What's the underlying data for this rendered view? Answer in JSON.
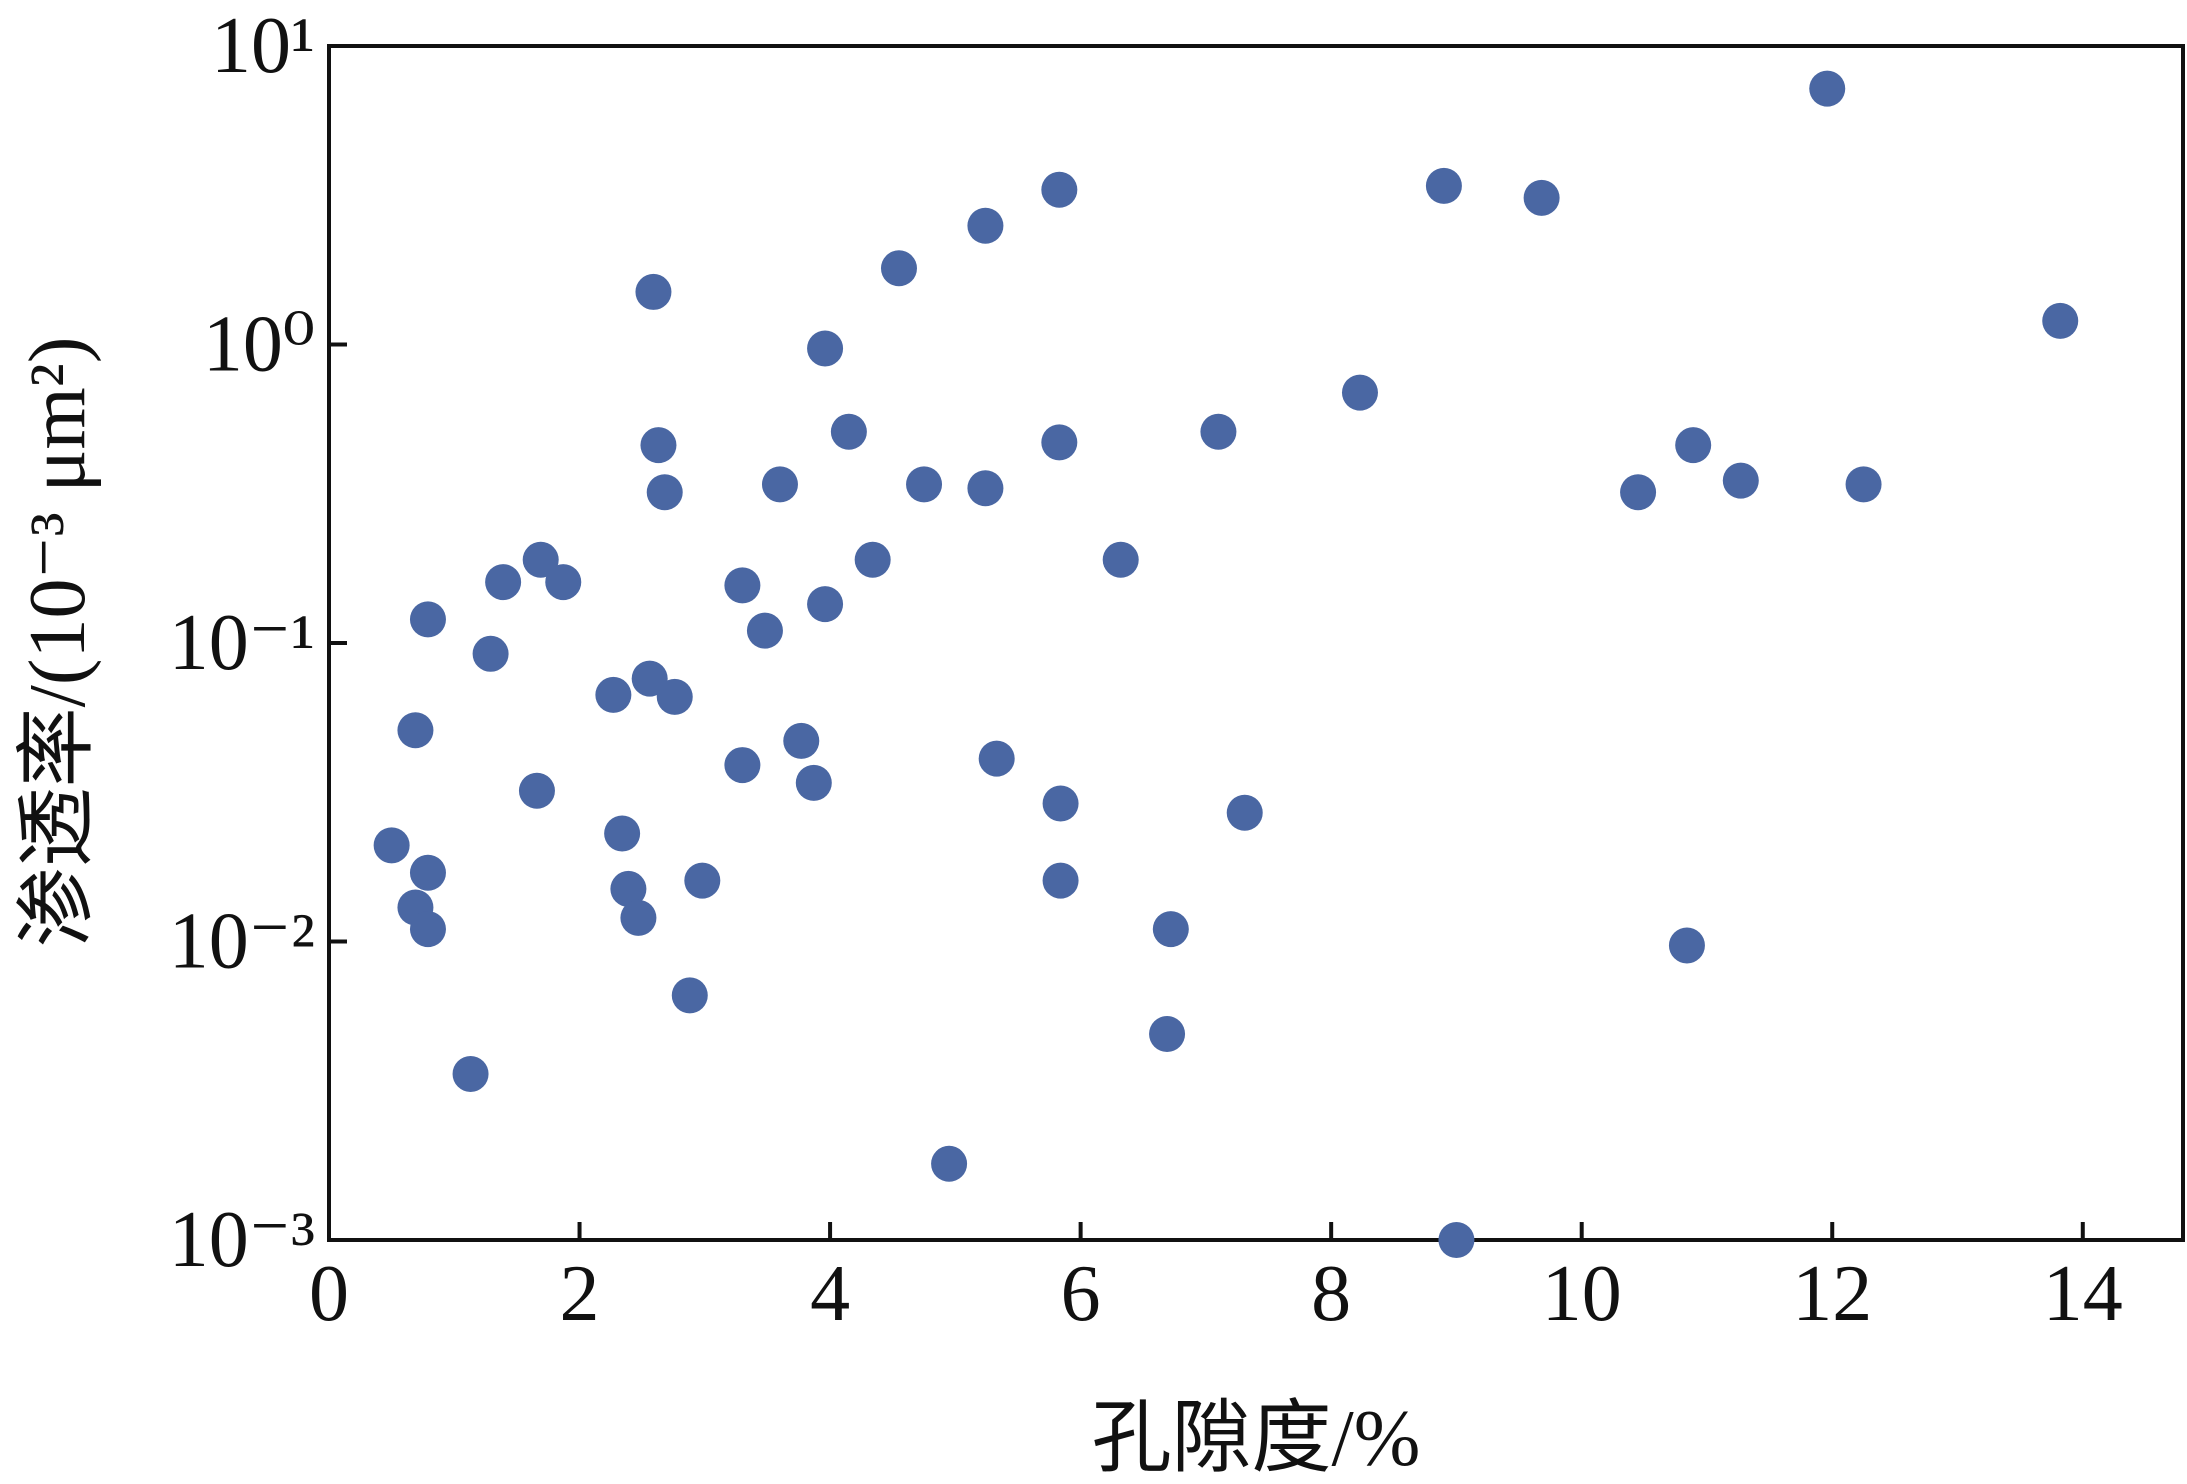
{
  "chart_data": {
    "type": "scatter",
    "x_label": "孔隙度/%",
    "y_label": "渗透率/(10⁻³ μm²)",
    "color": "#4a67a3",
    "log_y": true,
    "xlim": [
      0,
      14.8
    ],
    "xticks": [
      0,
      2,
      4,
      6,
      8,
      10,
      12,
      14
    ],
    "ylim": [
      0.001,
      10
    ],
    "yticks": [
      {
        "value": 0.001,
        "label": "10⁻³"
      },
      {
        "value": 0.01,
        "label": "10⁻²"
      },
      {
        "value": 0.1,
        "label": "10⁻¹"
      },
      {
        "value": 1,
        "label": "10⁰"
      },
      {
        "value": 10,
        "label": "10¹"
      }
    ],
    "x": [
      11.96,
      5.83,
      8.9,
      9.68,
      5.24,
      4.55,
      2.59,
      13.82,
      3.96,
      8.23,
      4.15,
      7.1,
      5.83,
      10.89,
      2.63,
      3.6,
      4.75,
      5.24,
      12.25,
      11.27,
      2.68,
      10.45,
      1.69,
      4.34,
      6.32,
      1.39,
      1.87,
      3.3,
      0.79,
      3.96,
      3.48,
      1.29,
      2.56,
      2.27,
      2.76,
      0.69,
      3.77,
      5.33,
      3.3,
      3.87,
      1.66,
      5.84,
      7.31,
      2.34,
      0.5,
      0.79,
      2.98,
      5.84,
      2.39,
      0.69,
      2.47,
      0.79,
      6.72,
      10.84,
      2.88,
      6.69,
      1.13,
      4.95,
      9.0
    ],
    "values": [
      7.2,
      3.3,
      3.4,
      3.1,
      2.5,
      1.8,
      1.5,
      1.2,
      0.97,
      0.69,
      0.51,
      0.51,
      0.47,
      0.46,
      0.46,
      0.34,
      0.34,
      0.33,
      0.34,
      0.35,
      0.32,
      0.32,
      0.19,
      0.19,
      0.19,
      0.16,
      0.16,
      0.156,
      0.12,
      0.135,
      0.11,
      0.092,
      0.076,
      0.067,
      0.066,
      0.051,
      0.047,
      0.041,
      0.039,
      0.034,
      0.032,
      0.029,
      0.027,
      0.023,
      0.021,
      0.017,
      0.016,
      0.016,
      0.015,
      0.013,
      0.012,
      0.011,
      0.011,
      0.0097,
      0.0066,
      0.0049,
      0.0036,
      0.0018,
      0.001
    ]
  }
}
